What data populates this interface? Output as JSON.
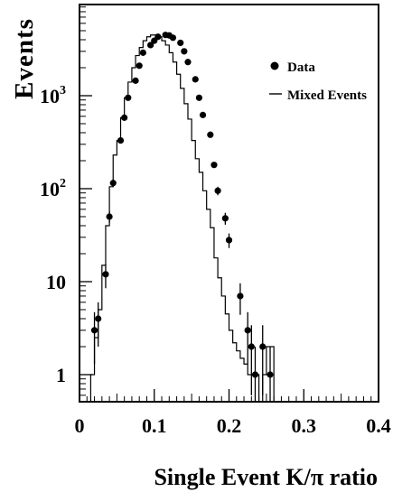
{
  "chart_data": {
    "type": "scatter",
    "xlabel": "Single Event K/π ratio",
    "ylabel": "Events",
    "xlim": [
      0,
      0.4
    ],
    "ylim": [
      0.5,
      10000
    ],
    "yscale": "log",
    "grid": false,
    "legend_position": "top-right",
    "x_tick_labels": [
      "0",
      "0.1",
      "0.2",
      "0.3",
      "0.4"
    ],
    "x_tick_values": [
      0,
      0.1,
      0.2,
      0.3,
      0.4
    ],
    "y_tick_labels": [
      {
        "base": "1",
        "exp": "",
        "value": 1
      },
      {
        "base": "10",
        "exp": "",
        "value": 10
      },
      {
        "base": "10",
        "exp": "2",
        "value": 100
      },
      {
        "base": "10",
        "exp": "3",
        "value": 1000
      }
    ],
    "series": [
      {
        "name": "Data",
        "style": "points",
        "points": [
          {
            "x": 0.02,
            "y": 3,
            "err": 1.7
          },
          {
            "x": 0.025,
            "y": 4,
            "err": 2.0
          },
          {
            "x": 0.035,
            "y": 12,
            "err": 3.5
          },
          {
            "x": 0.04,
            "y": 50,
            "err": 7
          },
          {
            "x": 0.045,
            "y": 115,
            "err": 11
          },
          {
            "x": 0.055,
            "y": 330,
            "err": 18
          },
          {
            "x": 0.06,
            "y": 580,
            "err": 24
          },
          {
            "x": 0.065,
            "y": 950,
            "err": 31
          },
          {
            "x": 0.075,
            "y": 1450,
            "err": 38
          },
          {
            "x": 0.08,
            "y": 2100,
            "err": 46
          },
          {
            "x": 0.085,
            "y": 2900,
            "err": 54
          },
          {
            "x": 0.095,
            "y": 3500,
            "err": 59
          },
          {
            "x": 0.1,
            "y": 3900,
            "err": 62
          },
          {
            "x": 0.105,
            "y": 4300,
            "err": 66
          },
          {
            "x": 0.115,
            "y": 4500,
            "err": 67
          },
          {
            "x": 0.12,
            "y": 4450,
            "err": 67
          },
          {
            "x": 0.125,
            "y": 4200,
            "err": 65
          },
          {
            "x": 0.135,
            "y": 3700,
            "err": 61
          },
          {
            "x": 0.14,
            "y": 3000,
            "err": 55
          },
          {
            "x": 0.145,
            "y": 2300,
            "err": 48
          },
          {
            "x": 0.155,
            "y": 1500,
            "err": 39
          },
          {
            "x": 0.16,
            "y": 950,
            "err": 31
          },
          {
            "x": 0.165,
            "y": 620,
            "err": 25
          },
          {
            "x": 0.175,
            "y": 380,
            "err": 19
          },
          {
            "x": 0.18,
            "y": 180,
            "err": 13
          },
          {
            "x": 0.185,
            "y": 95,
            "err": 10
          },
          {
            "x": 0.195,
            "y": 48,
            "err": 7
          },
          {
            "x": 0.2,
            "y": 28,
            "err": 5
          },
          {
            "x": 0.215,
            "y": 7,
            "err": 2.6
          },
          {
            "x": 0.225,
            "y": 3,
            "err": 1.7
          },
          {
            "x": 0.23,
            "y": 2,
            "err": 1.4
          },
          {
            "x": 0.235,
            "y": 1,
            "err": 1.0
          },
          {
            "x": 0.245,
            "y": 2,
            "err": 1.4
          },
          {
            "x": 0.255,
            "y": 1,
            "err": 1.0
          }
        ]
      },
      {
        "name": "Mixed Events",
        "style": "histogram",
        "bin_edges": [
          0.015,
          0.02,
          0.025,
          0.03,
          0.035,
          0.04,
          0.045,
          0.05,
          0.055,
          0.06,
          0.065,
          0.07,
          0.075,
          0.08,
          0.085,
          0.09,
          0.095,
          0.1,
          0.105,
          0.11,
          0.115,
          0.12,
          0.125,
          0.13,
          0.135,
          0.14,
          0.145,
          0.15,
          0.155,
          0.16,
          0.165,
          0.17,
          0.175,
          0.18,
          0.185,
          0.19,
          0.195,
          0.2,
          0.205,
          0.21,
          0.215,
          0.22,
          0.225,
          0.23,
          0.235,
          0.24,
          0.245,
          0.25,
          0.255,
          0.26,
          0.265,
          0.27,
          0.275,
          0.28
        ],
        "values": [
          1,
          2.5,
          5,
          15,
          40,
          105,
          230,
          330,
          580,
          950,
          1400,
          2000,
          2700,
          3300,
          3900,
          4300,
          4500,
          4500,
          4300,
          3900,
          3500,
          2900,
          2300,
          1700,
          1200,
          820,
          560,
          330,
          210,
          150,
          95,
          60,
          38,
          18,
          11,
          7,
          4.5,
          3,
          2.2,
          1.8,
          1.5,
          1.3,
          1,
          1,
          1,
          0.5,
          1,
          2,
          2,
          0.5,
          0.5,
          0.5,
          0.5
        ]
      }
    ]
  }
}
